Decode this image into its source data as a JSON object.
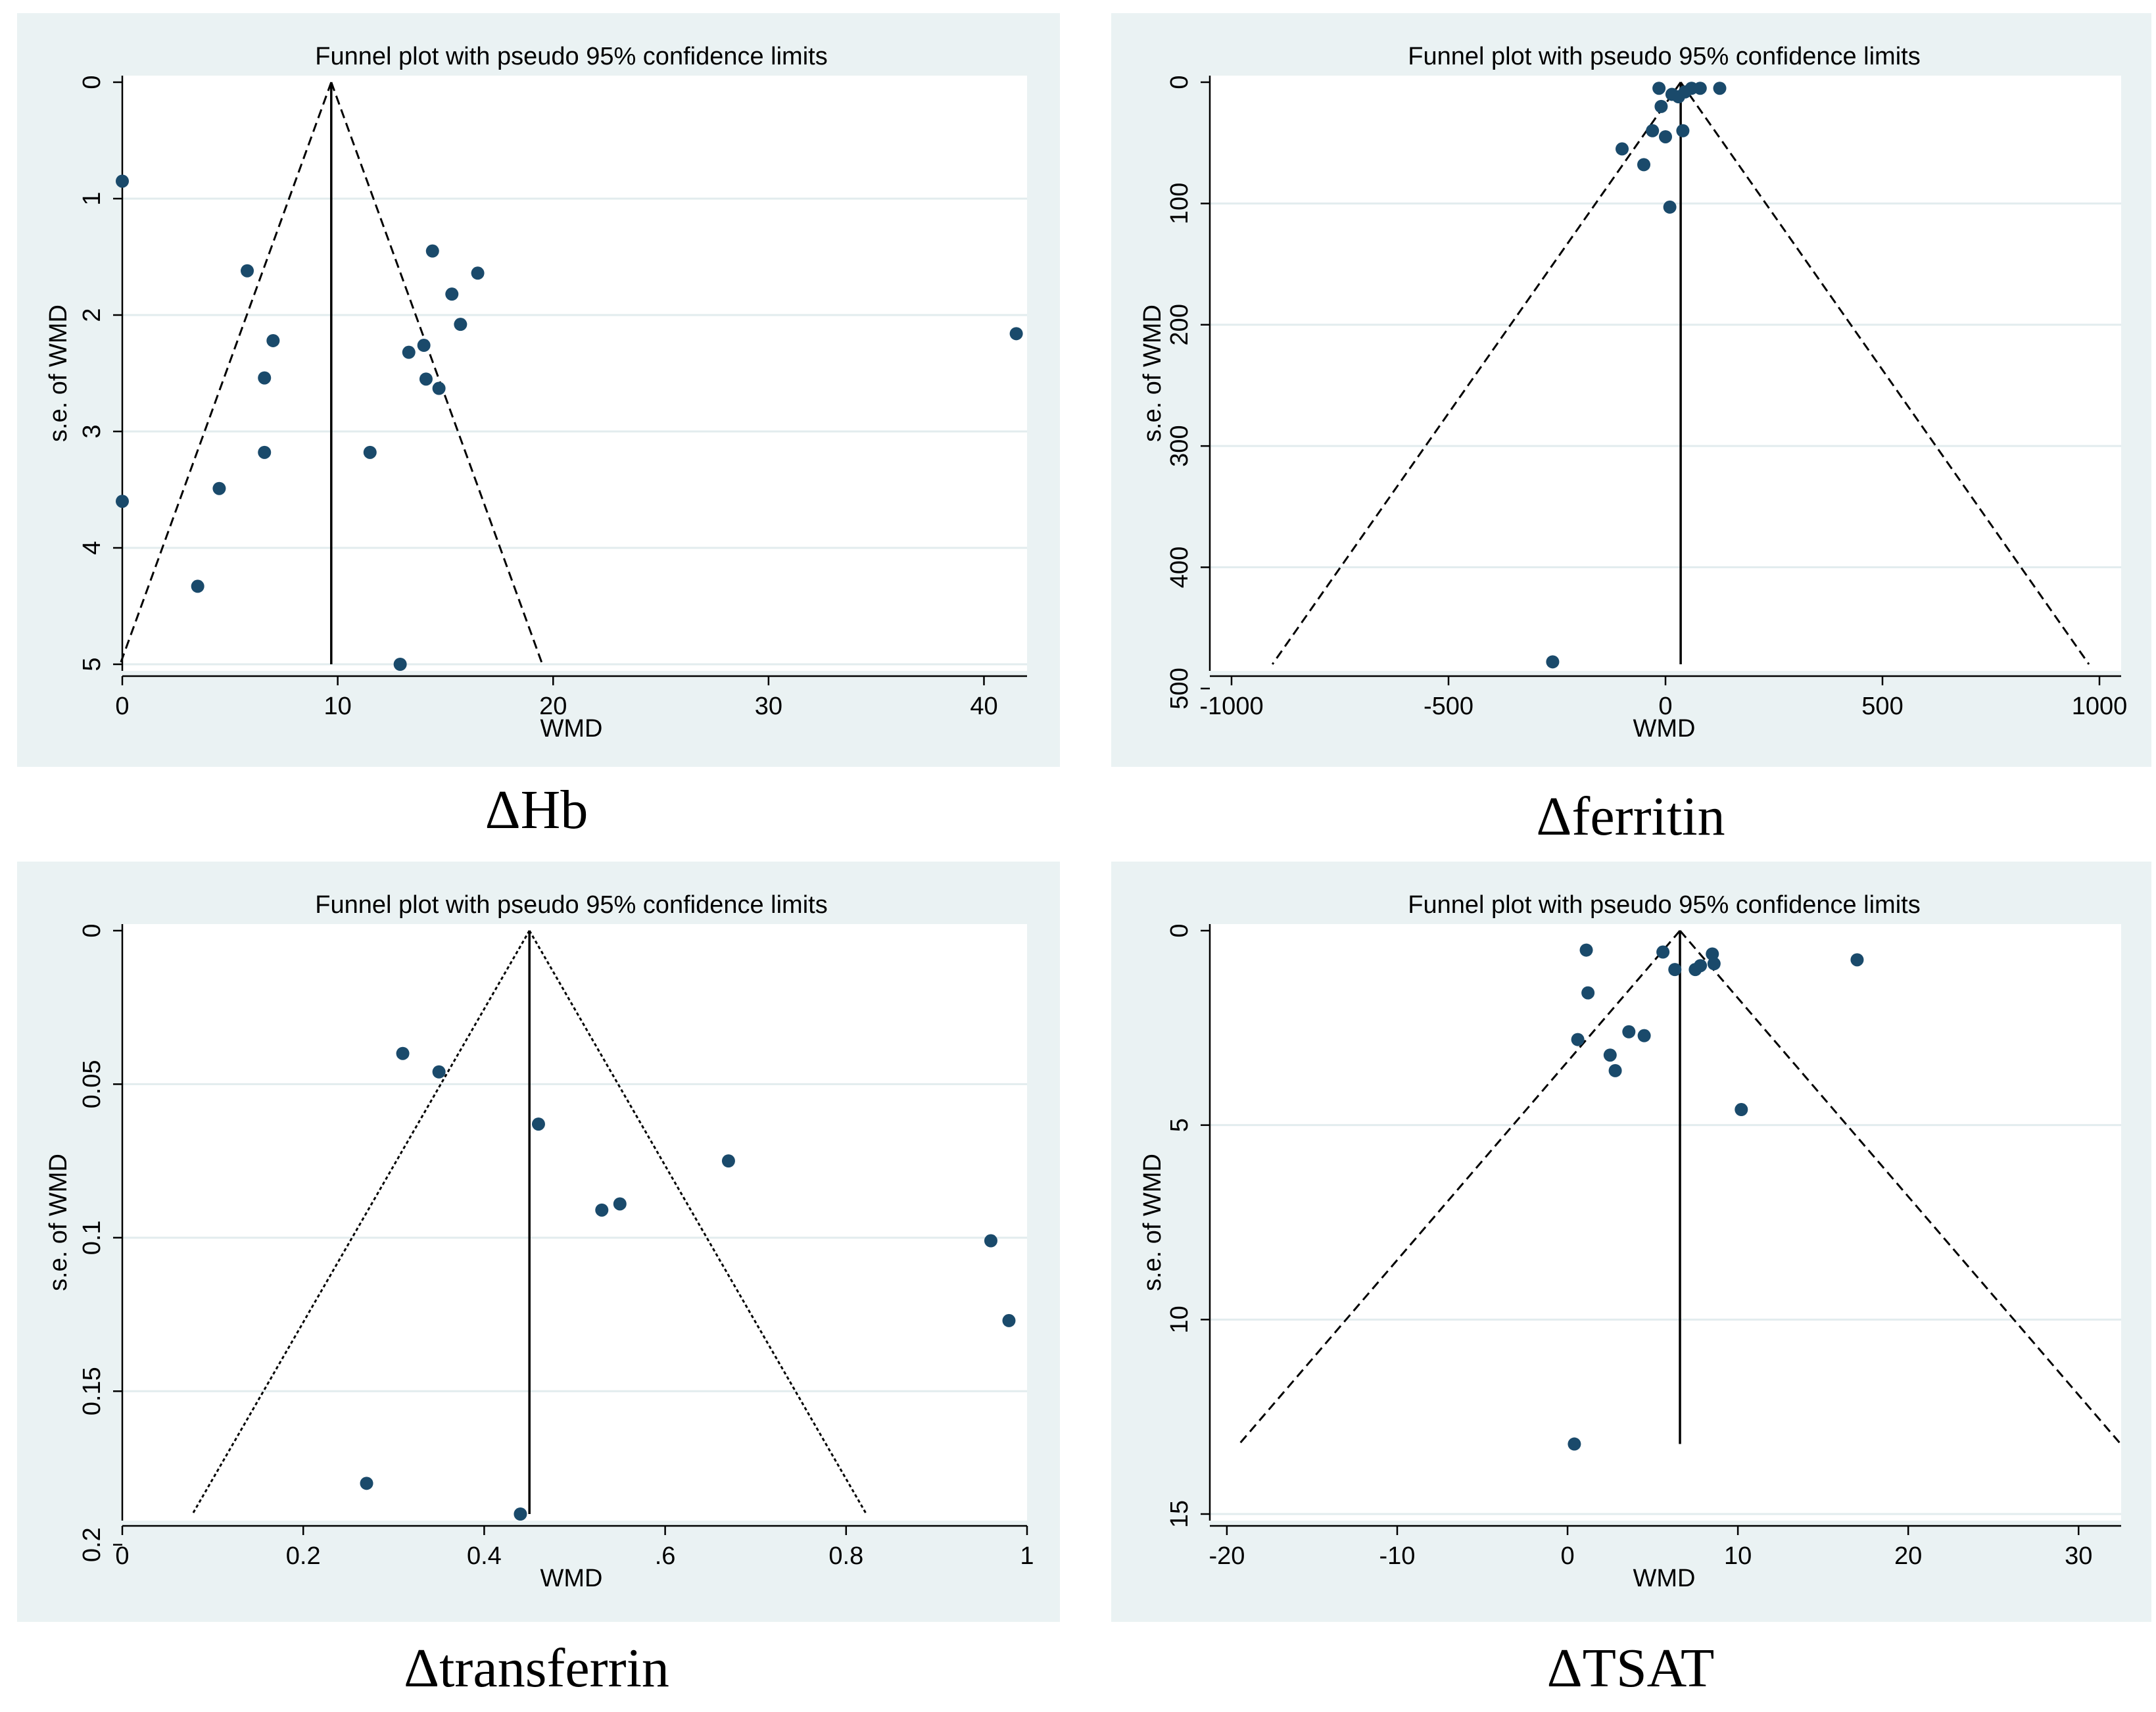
{
  "colors": {
    "panel_bg": "#eaf2f3",
    "plot_bg": "#ffffff",
    "marker": "#1a4a6b",
    "grid": "#e2ecee"
  },
  "chart_data": [
    {
      "type": "scatter",
      "title": "Funnel plot with pseudo 95% confidence limits",
      "caption": "ΔHb",
      "xlabel": "WMD",
      "ylabel": "s.e. of WMD",
      "xlim": [
        0,
        42
      ],
      "ylim": [
        0,
        5
      ],
      "y_reversed": true,
      "xticks": [
        0,
        10,
        20,
        30,
        40
      ],
      "xtick_labels": [
        "0",
        "10",
        "20",
        "30",
        "40"
      ],
      "yticks": [
        0,
        1,
        2,
        3,
        4,
        5
      ],
      "ytick_labels": [
        "0",
        "1",
        "2",
        "3",
        "4",
        "5"
      ],
      "pooled_estimate": 9.7,
      "funnel_base_se": 5,
      "line_style": "dashed",
      "grid": true,
      "points": [
        {
          "x": 0,
          "y": 0.85
        },
        {
          "x": 0,
          "y": 3.6
        },
        {
          "x": 5.8,
          "y": 1.62
        },
        {
          "x": 7.0,
          "y": 2.22
        },
        {
          "x": 6.6,
          "y": 2.54
        },
        {
          "x": 6.6,
          "y": 3.18
        },
        {
          "x": 4.5,
          "y": 3.49
        },
        {
          "x": 3.5,
          "y": 4.33
        },
        {
          "x": 11.5,
          "y": 3.18
        },
        {
          "x": 12.9,
          "y": 5.0
        },
        {
          "x": 14.4,
          "y": 1.45
        },
        {
          "x": 16.5,
          "y": 1.64
        },
        {
          "x": 15.3,
          "y": 1.82
        },
        {
          "x": 15.7,
          "y": 2.08
        },
        {
          "x": 14.0,
          "y": 2.26
        },
        {
          "x": 13.3,
          "y": 2.32
        },
        {
          "x": 14.1,
          "y": 2.55
        },
        {
          "x": 14.7,
          "y": 2.63
        },
        {
          "x": 41.5,
          "y": 2.16
        }
      ]
    },
    {
      "type": "scatter",
      "title": "Funnel plot with pseudo 95% confidence limits",
      "caption": "Δferritin",
      "xlabel": "WMD",
      "ylabel": "s.e. of WMD",
      "xlim": [
        -1050,
        1050
      ],
      "ylim": [
        0,
        480
      ],
      "y_reversed": true,
      "xticks": [
        -1000,
        -500,
        0,
        500,
        1000
      ],
      "xtick_labels": [
        "-1000",
        "-500",
        "0",
        "500",
        "1000"
      ],
      "yticks": [
        0,
        100,
        200,
        300,
        400,
        500
      ],
      "ytick_labels": [
        "0",
        "100",
        "200",
        "300",
        "400",
        "500"
      ],
      "pooled_estimate": 35,
      "funnel_base_se": 480,
      "line_style": "dashed",
      "grid": true,
      "points": [
        {
          "x": -15,
          "y": 5
        },
        {
          "x": 15,
          "y": 10
        },
        {
          "x": 45,
          "y": 8
        },
        {
          "x": 60,
          "y": 5
        },
        {
          "x": 80,
          "y": 5
        },
        {
          "x": 125,
          "y": 5
        },
        {
          "x": -10,
          "y": 20
        },
        {
          "x": 30,
          "y": 12
        },
        {
          "x": -30,
          "y": 40
        },
        {
          "x": 0,
          "y": 45
        },
        {
          "x": 40,
          "y": 40
        },
        {
          "x": -100,
          "y": 55
        },
        {
          "x": -50,
          "y": 68
        },
        {
          "x": 10,
          "y": 103
        },
        {
          "x": -260,
          "y": 478
        }
      ]
    },
    {
      "type": "scatter",
      "title": "Funnel plot with pseudo 95% confidence limits",
      "caption": "Δtransferrin",
      "xlabel": "WMD",
      "ylabel": "s.e. of WMD",
      "xlim": [
        0,
        1
      ],
      "ylim": [
        0,
        0.19
      ],
      "y_reversed": true,
      "xticks": [
        0,
        0.2,
        0.4,
        0.6,
        0.8,
        1
      ],
      "xtick_labels": [
        "0",
        "0.2",
        "0.4",
        ".6",
        "0.8",
        "1"
      ],
      "yticks": [
        0,
        0.05,
        0.1,
        0.15,
        0.2
      ],
      "ytick_labels": [
        "0",
        "0.05",
        "0.1",
        "0.15",
        "0.2"
      ],
      "pooled_estimate": 0.45,
      "funnel_base_se": 0.19,
      "line_style": "dotted",
      "grid": true,
      "points": [
        {
          "x": 0.31,
          "y": 0.04
        },
        {
          "x": 0.35,
          "y": 0.046
        },
        {
          "x": 0.46,
          "y": 0.063
        },
        {
          "x": 0.67,
          "y": 0.075
        },
        {
          "x": 0.53,
          "y": 0.091
        },
        {
          "x": 0.55,
          "y": 0.089
        },
        {
          "x": 0.96,
          "y": 0.101
        },
        {
          "x": 0.98,
          "y": 0.127
        },
        {
          "x": 0.27,
          "y": 0.18
        },
        {
          "x": 0.44,
          "y": 0.19
        }
      ]
    },
    {
      "type": "scatter",
      "title": "Funnel plot with pseudo 95% confidence limits",
      "caption": "ΔTSAT",
      "xlabel": "WMD",
      "ylabel": "s.e. of WMD",
      "xlim": [
        -21,
        32.5
      ],
      "ylim": [
        0,
        15
      ],
      "y_reversed": true,
      "xticks": [
        -20,
        -10,
        0,
        10,
        20,
        30
      ],
      "xtick_labels": [
        "-20",
        "-10",
        "0",
        "10",
        "20",
        "30"
      ],
      "yticks": [
        0,
        5,
        10,
        15
      ],
      "ytick_labels": [
        "0",
        "5",
        "10",
        "15"
      ],
      "pooled_estimate": 6.6,
      "funnel_base_se": 13.2,
      "line_style": "dashed",
      "grid": true,
      "points": [
        {
          "x": 1.1,
          "y": 0.5
        },
        {
          "x": 5.6,
          "y": 0.55
        },
        {
          "x": 6.3,
          "y": 1.0
        },
        {
          "x": 7.5,
          "y": 1.0
        },
        {
          "x": 7.8,
          "y": 0.9
        },
        {
          "x": 8.5,
          "y": 0.6
        },
        {
          "x": 8.6,
          "y": 0.85
        },
        {
          "x": 17.0,
          "y": 0.75
        },
        {
          "x": 1.2,
          "y": 1.6
        },
        {
          "x": 0.6,
          "y": 2.8
        },
        {
          "x": 3.6,
          "y": 2.6
        },
        {
          "x": 4.5,
          "y": 2.7
        },
        {
          "x": 2.5,
          "y": 3.2
        },
        {
          "x": 2.8,
          "y": 3.6
        },
        {
          "x": 10.2,
          "y": 4.6
        },
        {
          "x": 0.4,
          "y": 13.2
        }
      ]
    }
  ]
}
